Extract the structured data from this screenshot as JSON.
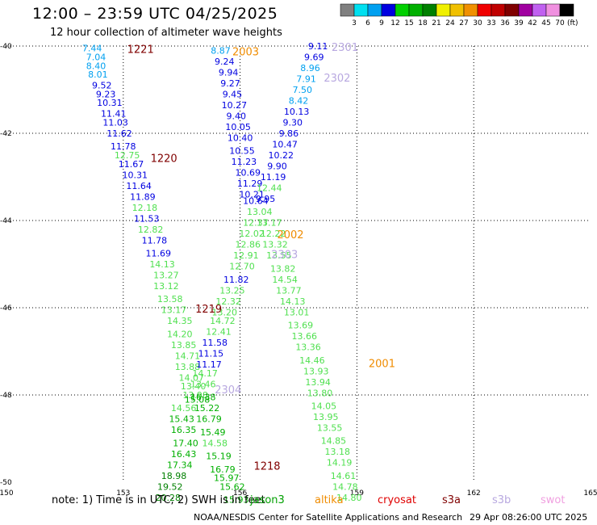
{
  "header": {
    "title": "12:00 – 23:59 UTC 04/25/2025",
    "subtitle": "12 hour collection of altimeter wave heights"
  },
  "footer": {
    "note": "note: 1) Time is in UTC; 2) SWH is in feet",
    "credit": "NOAA/NESDIS Center for Satellite Applications and Research",
    "timestamp": "29 Apr 08:26:00 UTC 2025"
  },
  "satellites": [
    {
      "name": "jason3",
      "color": "#00a000"
    },
    {
      "name": "altika",
      "color": "#f08c00"
    },
    {
      "name": "cryosat",
      "color": "#e00000"
    },
    {
      "name": "s3a",
      "color": "#800000"
    },
    {
      "name": "s3b",
      "color": "#b8a8e0"
    },
    {
      "name": "swot",
      "color": "#f0a0e0"
    }
  ],
  "colorbar": {
    "unit": "(ft)",
    "labels": [
      "3",
      "6",
      "9",
      "12",
      "15",
      "18",
      "21",
      "24",
      "27",
      "30",
      "33",
      "36",
      "39",
      "42",
      "45",
      "70"
    ],
    "colors": [
      "#808080",
      "#00e0f0",
      "#00a0f0",
      "#0000e0",
      "#00d000",
      "#00b000",
      "#008000",
      "#f0f000",
      "#f0c000",
      "#f09000",
      "#f00000",
      "#c00000",
      "#800000",
      "#a000a0",
      "#c060f0",
      "#f090e0",
      "#000000"
    ]
  },
  "chart_data": {
    "type": "scatter",
    "xlabel": "",
    "ylabel": "",
    "xlim": [
      150,
      165
    ],
    "ylim": [
      -50,
      -40
    ],
    "xticks": [
      150,
      153,
      156,
      159,
      162,
      165
    ],
    "yticks": [
      -40,
      -42,
      -44,
      -46,
      -48,
      -50
    ],
    "grid": true,
    "tracks": [
      {
        "label": "1221",
        "color": "#800000",
        "lx": 153.1,
        "ly": -40.05
      },
      {
        "label": "2003",
        "color": "#f08c00",
        "lx": 155.8,
        "ly": -40.1
      },
      {
        "label": "2301",
        "color": "#b8a8e0",
        "lx": 158.35,
        "ly": -40.0
      },
      {
        "label": "2302",
        "color": "#b8a8e0",
        "lx": 158.15,
        "ly": -40.7
      },
      {
        "label": "1220",
        "color": "#800000",
        "lx": 153.7,
        "ly": -42.55
      },
      {
        "label": "2002",
        "color": "#f08c00",
        "lx": 156.95,
        "ly": -44.3
      },
      {
        "label": "2303",
        "color": "#b8a8e0",
        "lx": 156.8,
        "ly": -44.75
      },
      {
        "label": "1219",
        "color": "#800000",
        "lx": 154.85,
        "ly": -46.0
      },
      {
        "label": "2001",
        "color": "#f08c00",
        "lx": 159.3,
        "ly": -47.25
      },
      {
        "label": "2304",
        "color": "#b8a8e0",
        "lx": 155.35,
        "ly": -47.85
      },
      {
        "label": "1218",
        "color": "#800000",
        "lx": 156.35,
        "ly": -49.6
      }
    ],
    "points": [
      {
        "x": 152.2,
        "y": -40.05,
        "v": "7.44"
      },
      {
        "x": 152.3,
        "y": -40.25,
        "v": "7.04"
      },
      {
        "x": 152.3,
        "y": -40.45,
        "v": "8.40"
      },
      {
        "x": 152.35,
        "y": -40.65,
        "v": "8.01"
      },
      {
        "x": 152.45,
        "y": -40.9,
        "v": "9.52"
      },
      {
        "x": 152.55,
        "y": -41.1,
        "v": "9.23"
      },
      {
        "x": 152.65,
        "y": -41.3,
        "v": "10.31"
      },
      {
        "x": 152.75,
        "y": -41.55,
        "v": "11.41"
      },
      {
        "x": 152.8,
        "y": -41.75,
        "v": "11.03"
      },
      {
        "x": 152.9,
        "y": -42.0,
        "v": "11.62"
      },
      {
        "x": 153.0,
        "y": -42.3,
        "v": "11.78"
      },
      {
        "x": 153.1,
        "y": -42.5,
        "v": "12.75"
      },
      {
        "x": 153.2,
        "y": -42.7,
        "v": "11.67"
      },
      {
        "x": 153.3,
        "y": -42.95,
        "v": "10.31"
      },
      {
        "x": 153.4,
        "y": -43.2,
        "v": "11.64"
      },
      {
        "x": 153.5,
        "y": -43.45,
        "v": "11.89"
      },
      {
        "x": 153.55,
        "y": -43.7,
        "v": "12.18"
      },
      {
        "x": 153.6,
        "y": -43.95,
        "v": "11.53"
      },
      {
        "x": 153.7,
        "y": -44.2,
        "v": "12.82"
      },
      {
        "x": 153.8,
        "y": -44.45,
        "v": "11.78"
      },
      {
        "x": 153.9,
        "y": -44.75,
        "v": "11.69"
      },
      {
        "x": 154.0,
        "y": -45.0,
        "v": "14.13"
      },
      {
        "x": 154.1,
        "y": -45.25,
        "v": "13.27"
      },
      {
        "x": 154.1,
        "y": -45.5,
        "v": "13.12"
      },
      {
        "x": 154.2,
        "y": -45.8,
        "v": "13.58"
      },
      {
        "x": 154.3,
        "y": -46.05,
        "v": "13.17"
      },
      {
        "x": 154.45,
        "y": -46.3,
        "v": "14.35"
      },
      {
        "x": 154.45,
        "y": -46.6,
        "v": "14.20"
      },
      {
        "x": 154.55,
        "y": -46.85,
        "v": "13.85"
      },
      {
        "x": 154.65,
        "y": -47.1,
        "v": "14.71"
      },
      {
        "x": 154.65,
        "y": -47.35,
        "v": "13.88"
      },
      {
        "x": 154.75,
        "y": -47.6,
        "v": "14.07"
      },
      {
        "x": 154.8,
        "y": -47.8,
        "v": "13.40"
      },
      {
        "x": 154.85,
        "y": -48.0,
        "v": "13.98"
      },
      {
        "x": 154.9,
        "y": -48.1,
        "v": "15.08"
      },
      {
        "x": 154.55,
        "y": -48.3,
        "v": "14.56"
      },
      {
        "x": 154.5,
        "y": -48.55,
        "v": "15.43"
      },
      {
        "x": 154.55,
        "y": -48.8,
        "v": "16.35"
      },
      {
        "x": 154.6,
        "y": -49.1,
        "v": "17.40"
      },
      {
        "x": 154.55,
        "y": -49.35,
        "v": "16.43"
      },
      {
        "x": 154.45,
        "y": -49.6,
        "v": "17.34"
      },
      {
        "x": 154.3,
        "y": -49.85,
        "v": "18.98"
      },
      {
        "x": 154.2,
        "y": -50.1,
        "v": "19.52"
      },
      {
        "x": 154.15,
        "y": -50.35,
        "v": "20.28"
      },
      {
        "x": 155.5,
        "y": -40.1,
        "v": "8.87"
      },
      {
        "x": 155.6,
        "y": -40.35,
        "v": "9.24"
      },
      {
        "x": 155.7,
        "y": -40.6,
        "v": "9.94"
      },
      {
        "x": 155.75,
        "y": -40.85,
        "v": "9.27"
      },
      {
        "x": 155.8,
        "y": -41.1,
        "v": "9.45"
      },
      {
        "x": 155.85,
        "y": -41.35,
        "v": "10.27"
      },
      {
        "x": 155.9,
        "y": -41.6,
        "v": "9.40"
      },
      {
        "x": 155.95,
        "y": -41.85,
        "v": "10.05"
      },
      {
        "x": 156.0,
        "y": -42.1,
        "v": "10.40"
      },
      {
        "x": 156.05,
        "y": -42.4,
        "v": "10.55"
      },
      {
        "x": 156.1,
        "y": -42.65,
        "v": "11.23"
      },
      {
        "x": 156.2,
        "y": -42.9,
        "v": "10.69"
      },
      {
        "x": 156.25,
        "y": -43.15,
        "v": "11.29"
      },
      {
        "x": 156.3,
        "y": -43.4,
        "v": "10.21"
      },
      {
        "x": 156.4,
        "y": -43.55,
        "v": "10.64"
      },
      {
        "x": 156.5,
        "y": -43.8,
        "v": "13.04"
      },
      {
        "x": 156.4,
        "y": -44.05,
        "v": "12.37"
      },
      {
        "x": 156.3,
        "y": -44.3,
        "v": "12.02"
      },
      {
        "x": 156.2,
        "y": -44.55,
        "v": "12.86"
      },
      {
        "x": 156.15,
        "y": -44.8,
        "v": "12.91"
      },
      {
        "x": 156.05,
        "y": -45.05,
        "v": "12.70"
      },
      {
        "x": 155.9,
        "y": -45.35,
        "v": "11.82"
      },
      {
        "x": 155.8,
        "y": -45.6,
        "v": "13.25"
      },
      {
        "x": 155.7,
        "y": -45.85,
        "v": "12.32"
      },
      {
        "x": 155.6,
        "y": -46.1,
        "v": "13.20"
      },
      {
        "x": 155.55,
        "y": -46.3,
        "v": "14.72"
      },
      {
        "x": 155.45,
        "y": -46.55,
        "v": "12.41"
      },
      {
        "x": 155.35,
        "y": -46.8,
        "v": "11.58"
      },
      {
        "x": 155.25,
        "y": -47.05,
        "v": "11.15"
      },
      {
        "x": 155.2,
        "y": -47.3,
        "v": "11.17"
      },
      {
        "x": 155.1,
        "y": -47.5,
        "v": "14.17"
      },
      {
        "x": 155.05,
        "y": -47.75,
        "v": "13.46"
      },
      {
        "x": 155.05,
        "y": -48.05,
        "v": "16.38"
      },
      {
        "x": 155.15,
        "y": -48.3,
        "v": "15.22"
      },
      {
        "x": 155.2,
        "y": -48.55,
        "v": "16.79"
      },
      {
        "x": 155.3,
        "y": -48.85,
        "v": "15.49"
      },
      {
        "x": 155.35,
        "y": -49.1,
        "v": "14.58"
      },
      {
        "x": 155.45,
        "y": -49.4,
        "v": "15.19"
      },
      {
        "x": 155.55,
        "y": -49.7,
        "v": "16.79"
      },
      {
        "x": 155.65,
        "y": -49.9,
        "v": "15.97"
      },
      {
        "x": 155.8,
        "y": -50.1,
        "v": "15.62"
      },
      {
        "x": 155.9,
        "y": -50.4,
        "v": "15.93"
      },
      {
        "x": 158.0,
        "y": -40.0,
        "v": "9.11"
      },
      {
        "x": 157.9,
        "y": -40.25,
        "v": "9.69"
      },
      {
        "x": 157.8,
        "y": -40.5,
        "v": "8.96"
      },
      {
        "x": 157.7,
        "y": -40.75,
        "v": "7.91"
      },
      {
        "x": 157.6,
        "y": -41.0,
        "v": "7.50"
      },
      {
        "x": 157.5,
        "y": -41.25,
        "v": "8.42"
      },
      {
        "x": 157.45,
        "y": -41.5,
        "v": "10.13"
      },
      {
        "x": 157.35,
        "y": -41.75,
        "v": "9.30"
      },
      {
        "x": 157.25,
        "y": -42.0,
        "v": "9.86"
      },
      {
        "x": 157.15,
        "y": -42.25,
        "v": "10.47"
      },
      {
        "x": 157.05,
        "y": -42.5,
        "v": "10.22"
      },
      {
        "x": 156.95,
        "y": -42.75,
        "v": "9.90"
      },
      {
        "x": 156.85,
        "y": -43.0,
        "v": "11.19"
      },
      {
        "x": 156.75,
        "y": -43.25,
        "v": "12.44"
      },
      {
        "x": 156.65,
        "y": -43.5,
        "v": "9.95"
      },
      {
        "x": 156.75,
        "y": -44.05,
        "v": "13.17"
      },
      {
        "x": 156.85,
        "y": -44.3,
        "v": "12.22"
      },
      {
        "x": 156.9,
        "y": -44.55,
        "v": "13.32"
      },
      {
        "x": 157.0,
        "y": -44.8,
        "v": "13.55"
      },
      {
        "x": 157.1,
        "y": -45.1,
        "v": "13.82"
      },
      {
        "x": 157.15,
        "y": -45.35,
        "v": "14.54"
      },
      {
        "x": 157.25,
        "y": -45.6,
        "v": "13.77"
      },
      {
        "x": 157.35,
        "y": -45.85,
        "v": "14.13"
      },
      {
        "x": 157.45,
        "y": -46.1,
        "v": "13.01"
      },
      {
        "x": 157.55,
        "y": -46.4,
        "v": "13.69"
      },
      {
        "x": 157.65,
        "y": -46.65,
        "v": "13.66"
      },
      {
        "x": 157.75,
        "y": -46.9,
        "v": "13.36"
      },
      {
        "x": 157.85,
        "y": -47.2,
        "v": "14.46"
      },
      {
        "x": 157.95,
        "y": -47.45,
        "v": "13.93"
      },
      {
        "x": 158.0,
        "y": -47.7,
        "v": "13.94"
      },
      {
        "x": 158.05,
        "y": -47.95,
        "v": "13.80"
      },
      {
        "x": 158.15,
        "y": -48.25,
        "v": "14.05"
      },
      {
        "x": 158.2,
        "y": -48.5,
        "v": "13.95"
      },
      {
        "x": 158.3,
        "y": -48.75,
        "v": "13.55"
      },
      {
        "x": 158.4,
        "y": -49.05,
        "v": "14.85"
      },
      {
        "x": 158.5,
        "y": -49.3,
        "v": "13.18"
      },
      {
        "x": 158.55,
        "y": -49.55,
        "v": "14.19"
      },
      {
        "x": 158.65,
        "y": -49.85,
        "v": "14.61"
      },
      {
        "x": 158.7,
        "y": -50.1,
        "v": "14.78"
      },
      {
        "x": 158.8,
        "y": -50.35,
        "v": "14.80"
      }
    ]
  }
}
